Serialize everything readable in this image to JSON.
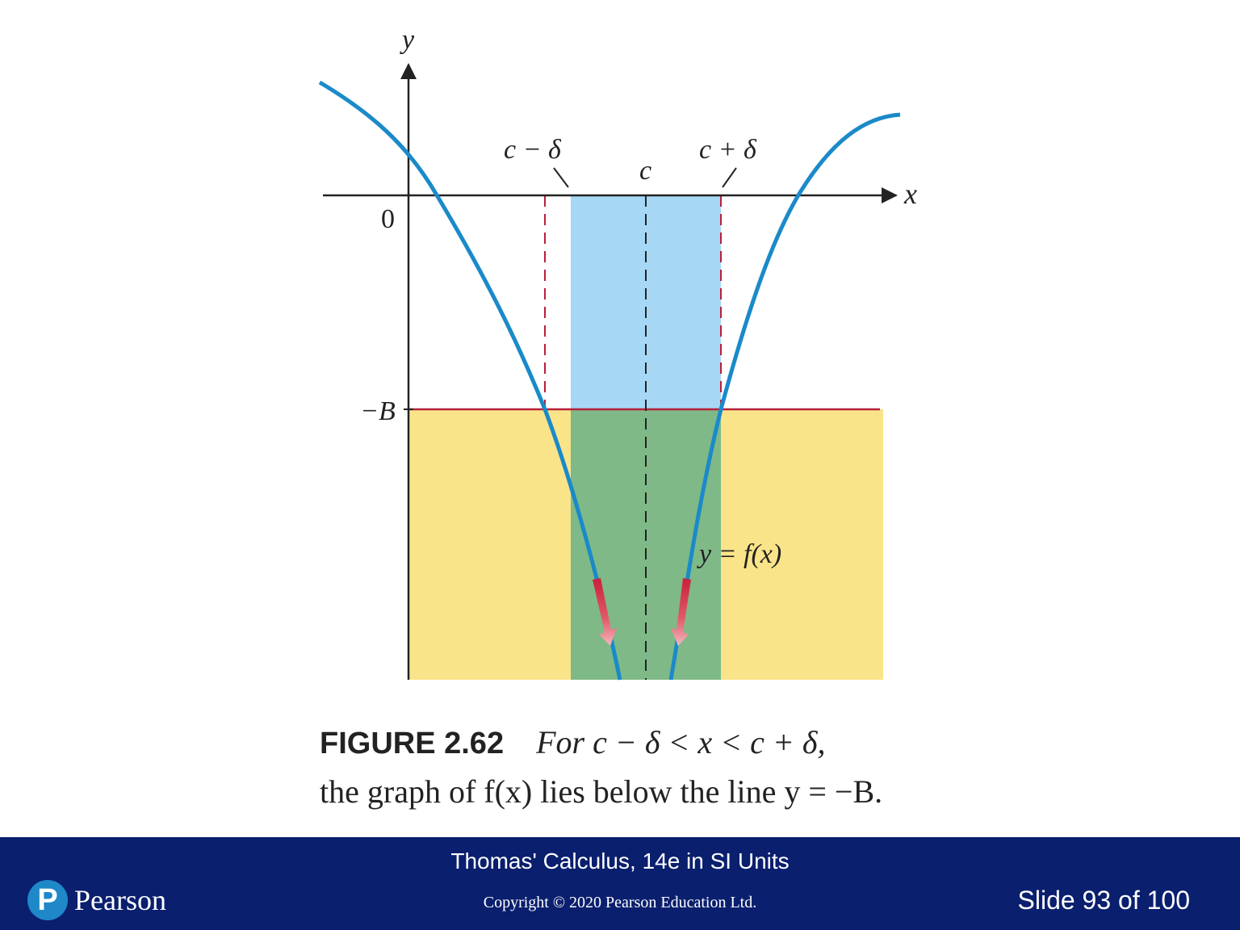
{
  "figure": {
    "axis_y_label": "y",
    "axis_x_label": "x",
    "origin_label": "0",
    "neg_b_label": "−B",
    "c_label": "c",
    "c_minus_delta_label": "c − δ",
    "c_plus_delta_label": "c + δ",
    "curve_label": "y = f(x)",
    "colors": {
      "curve": "#1a8ac9",
      "blue_band": "#a6d8f5",
      "yellow_region": "#fae48a",
      "green_overlap": "#7fb987",
      "red_line": "#b8203a",
      "axis": "#222222",
      "arrow": "#c8203a"
    }
  },
  "caption": {
    "figure_label": "FIGURE 2.62",
    "line1_text": "For c − δ < x < c + δ,",
    "line2_text": "the graph of f(x) lies below the line y = −B."
  },
  "footer": {
    "book_title": "Thomas' Calculus, 14e in SI Units",
    "copyright": "Copyright © 2020 Pearson Education Ltd.",
    "slide_counter": "Slide 93 of 100",
    "logo_letter": "P",
    "logo_word": "Pearson"
  }
}
